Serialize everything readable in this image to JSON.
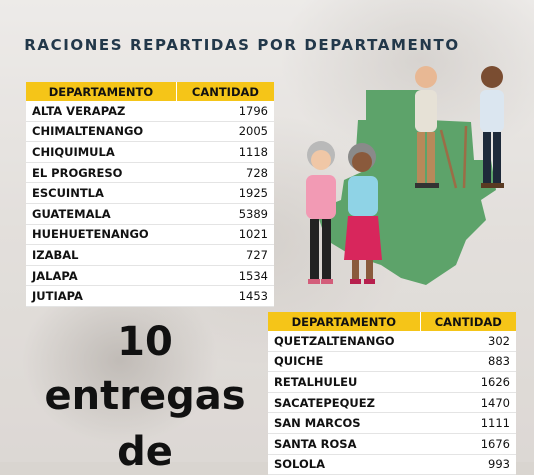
{
  "header": {
    "title": "RACIONES REPARTIDAS POR DEPARTAMENTO"
  },
  "table1": {
    "columns": [
      "DEPARTAMENTO",
      "CANTIDAD"
    ],
    "rows": [
      [
        "ALTA VERAPAZ",
        "1796"
      ],
      [
        "CHIMALTENANGO",
        "2005"
      ],
      [
        "CHIQUIMULA",
        "1118"
      ],
      [
        "EL PROGRESO",
        "728"
      ],
      [
        "ESCUINTLA",
        "1925"
      ],
      [
        "GUATEMALA",
        "5389"
      ],
      [
        "HUEHUETENANGO",
        "1021"
      ],
      [
        "IZABAL",
        "727"
      ],
      [
        "JALAPA",
        "1534"
      ],
      [
        "JUTIAPA",
        "1453"
      ]
    ]
  },
  "table2": {
    "columns": [
      "DEPARTAMENTO",
      "CANTIDAD"
    ],
    "rows": [
      [
        "QUETZALTENANGO",
        "302"
      ],
      [
        "QUICHE",
        "883"
      ],
      [
        "RETALHULEU",
        "1626"
      ],
      [
        "SACATEPEQUEZ",
        "1470"
      ],
      [
        "SAN MARCOS",
        "1111"
      ],
      [
        "SANTA ROSA",
        "1676"
      ],
      [
        "SOLOLA",
        "993"
      ]
    ]
  },
  "headline": {
    "line1": "10",
    "line2": "entregas",
    "line3": "de"
  },
  "colors": {
    "accent": "#f5c518",
    "title": "#22384a",
    "map": "#5da36a"
  },
  "icons": [
    "guatemala-map-icon",
    "elderly-people-illustration"
  ]
}
